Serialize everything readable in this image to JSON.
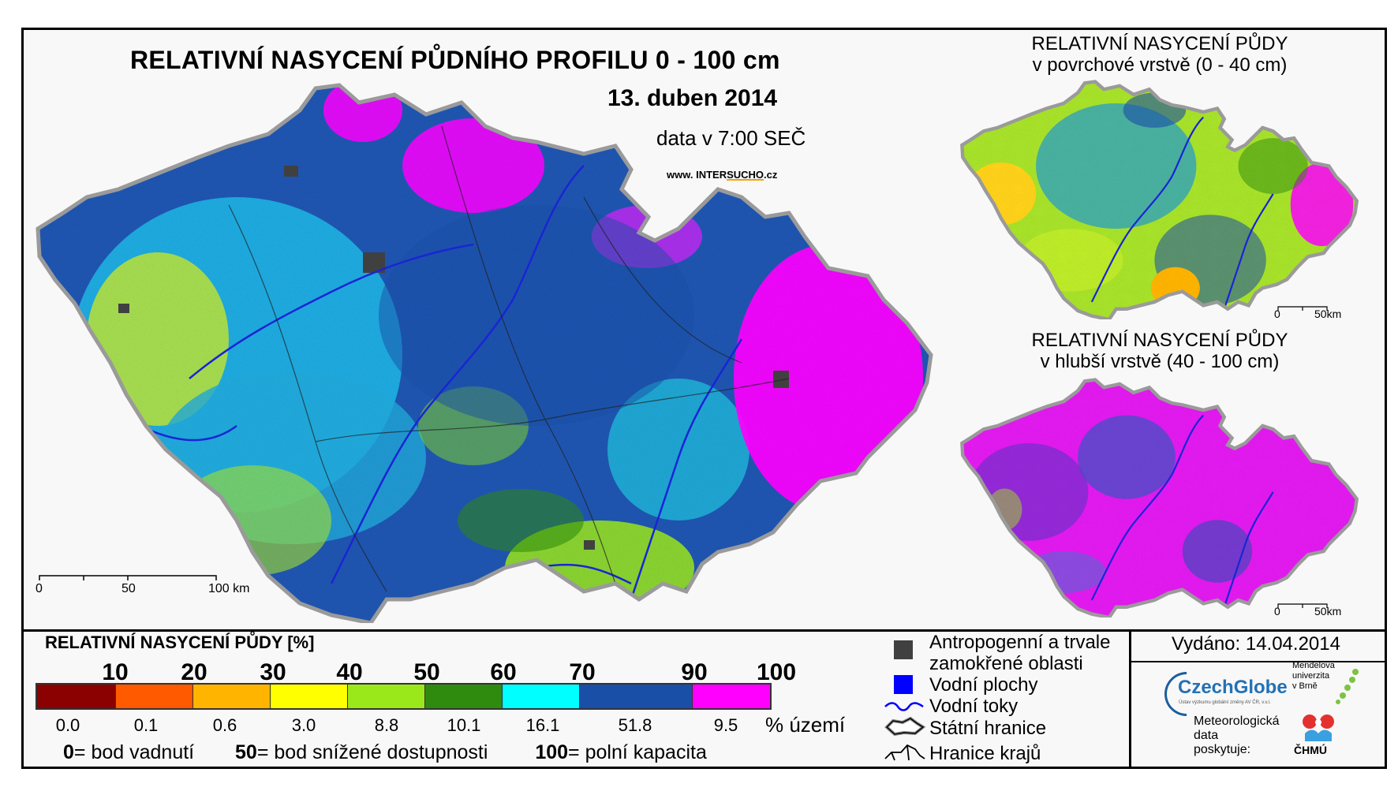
{
  "main": {
    "title": "RELATIVNÍ NASYCENÍ PŮDNÍHO PROFILU 0 - 100 cm",
    "date": "13. duben 2014",
    "time": "data v 7:00 SEČ",
    "website_prefix": "www. INTER",
    "website_accent": "SUCHO",
    "website_suffix": ".cz"
  },
  "inset_top": {
    "title_line1": "RELATIVNÍ NASYCENÍ PŮDY",
    "title_line2": "v povrchové vrstvě (0 - 40 cm)",
    "scale_0": "0",
    "scale_end": "50km"
  },
  "inset_bottom": {
    "title_line1": "RELATIVNÍ NASYCENÍ PŮDY",
    "title_line2": "v hlubší vrstvě (40 - 100 cm)",
    "scale_0": "0",
    "scale_end": "50km"
  },
  "main_scale": {
    "s0": "0",
    "s50": "50",
    "s100": "100 km"
  },
  "legend": {
    "title": "RELATIVNÍ NASYCENÍ PŮDY [%]",
    "ticks": [
      "10",
      "20",
      "30",
      "40",
      "50",
      "60",
      "70",
      "90",
      "100"
    ],
    "colors": [
      "#8b0000",
      "#ff5a00",
      "#ffb400",
      "#ffff00",
      "#9be81a",
      "#2e8b0e",
      "#00ffff",
      "#1a4fa8",
      "#ff00ff"
    ],
    "shares": [
      "0.0",
      "0.1",
      "0.6",
      "3.0",
      "8.8",
      "10.1",
      "16.1",
      "51.8",
      "9.5"
    ],
    "share_unit": "% území",
    "def_0_num": "0",
    "def_0_text": "= bod vadnutí",
    "def_50_num": "50",
    "def_50_text": "= bod snížené dostupnosti",
    "def_100_num": "100",
    "def_100_text": "= polní kapacita"
  },
  "symbols": {
    "anthropogenic_1": "Antropogenní a trvale",
    "anthropogenic_2": "zamokřené oblasti",
    "water_bodies": "Vodní plochy",
    "water_courses": "Vodní toky",
    "state_border": "Státní hranice",
    "region_border": "Hranice krajů",
    "anthropogenic_color": "#404040",
    "water_color": "#0000ff"
  },
  "issued": "Vydáno: 14.04.2014",
  "providers": {
    "czechglobe": "CzechGlobe",
    "czechglobe_sub": "Ústav výzkumu globální změny AV ČR, v.v.i.",
    "mendel_1": "Mendelova",
    "mendel_2": "univerzita",
    "mendel_3": "v Brně",
    "meteo_1": "Meteorologická",
    "meteo_2": "data",
    "meteo_3": "poskytuje:",
    "chmu": "ČHMÚ"
  }
}
